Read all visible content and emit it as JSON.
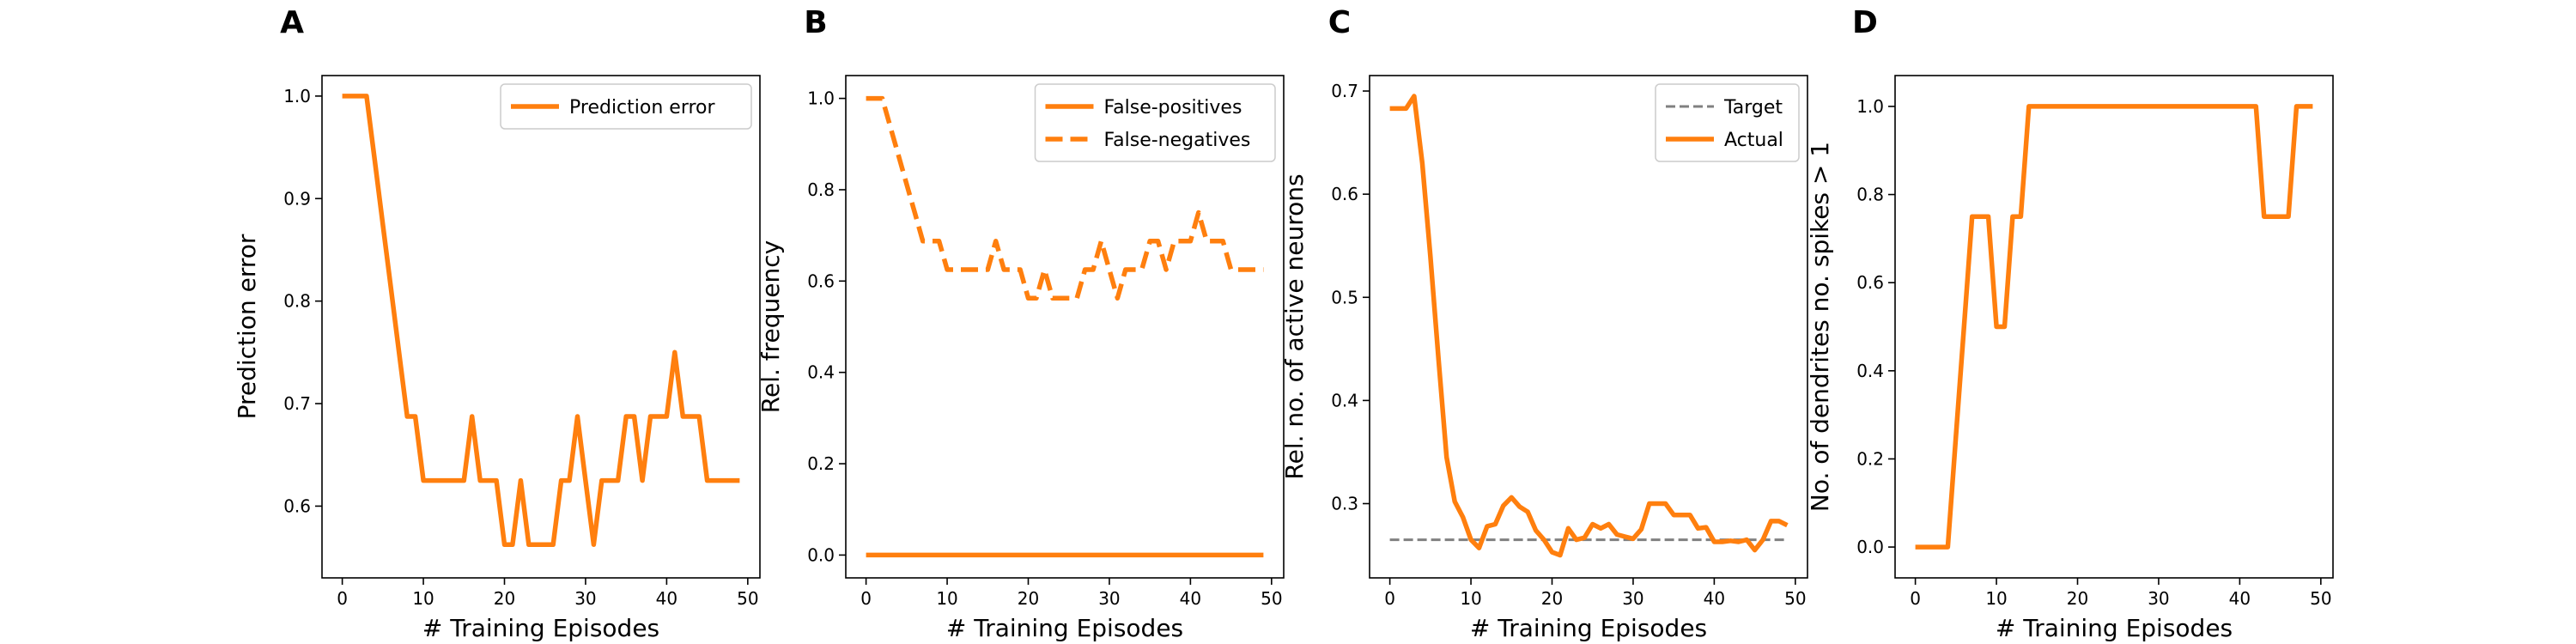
{
  "colors": {
    "series": "#ff7f0e",
    "target": "#808080",
    "axis": "#000000",
    "legend_border": "#cccccc"
  },
  "chart_data": [
    {
      "panel": "A",
      "type": "line",
      "xlabel": "# Training Episodes",
      "ylabel": "Prediction error",
      "xlim": [
        -2.5,
        51.5
      ],
      "ylim": [
        0.53,
        1.02
      ],
      "xticks": [
        0,
        10,
        20,
        30,
        40,
        50
      ],
      "yticks": [
        0.6,
        0.7,
        0.8,
        0.9,
        1.0
      ],
      "ytick_format": "1",
      "grid": false,
      "legend": "top-right",
      "x": [
        0,
        1,
        2,
        3,
        4,
        5,
        6,
        7,
        8,
        9,
        10,
        11,
        12,
        13,
        14,
        15,
        16,
        17,
        18,
        19,
        20,
        21,
        22,
        23,
        24,
        25,
        26,
        27,
        28,
        29,
        30,
        31,
        32,
        33,
        34,
        35,
        36,
        37,
        38,
        39,
        40,
        41,
        42,
        43,
        44,
        45,
        46,
        47,
        48,
        49
      ],
      "series": [
        {
          "name": "Prediction error",
          "style": "solid",
          "values": [
            1.0,
            1.0,
            1.0,
            1.0,
            0.9375,
            0.875,
            0.8125,
            0.75,
            0.6875,
            0.6875,
            0.625,
            0.625,
            0.625,
            0.625,
            0.625,
            0.625,
            0.6875,
            0.625,
            0.625,
            0.625,
            0.5625,
            0.5625,
            0.625,
            0.5625,
            0.5625,
            0.5625,
            0.5625,
            0.625,
            0.625,
            0.6875,
            0.625,
            0.5625,
            0.625,
            0.625,
            0.625,
            0.6875,
            0.6875,
            0.625,
            0.6875,
            0.6875,
            0.6875,
            0.75,
            0.6875,
            0.6875,
            0.6875,
            0.625,
            0.625,
            0.625,
            0.625,
            0.625
          ]
        }
      ]
    },
    {
      "panel": "B",
      "type": "line",
      "xlabel": "# Training Episodes",
      "ylabel": "Rel. frequency",
      "xlim": [
        -2.5,
        51.5
      ],
      "ylim": [
        -0.05,
        1.05
      ],
      "xticks": [
        0,
        10,
        20,
        30,
        40,
        50
      ],
      "yticks": [
        0.0,
        0.2,
        0.4,
        0.6,
        0.8,
        1.0
      ],
      "ytick_format": "1",
      "grid": false,
      "legend": "top-right",
      "x": [
        0,
        1,
        2,
        3,
        4,
        5,
        6,
        7,
        8,
        9,
        10,
        11,
        12,
        13,
        14,
        15,
        16,
        17,
        18,
        19,
        20,
        21,
        22,
        23,
        24,
        25,
        26,
        27,
        28,
        29,
        30,
        31,
        32,
        33,
        34,
        35,
        36,
        37,
        38,
        39,
        40,
        41,
        42,
        43,
        44,
        45,
        46,
        47,
        48,
        49
      ],
      "series": [
        {
          "name": "False-positives",
          "style": "solid",
          "values": [
            0,
            0,
            0,
            0,
            0,
            0,
            0,
            0,
            0,
            0,
            0,
            0,
            0,
            0,
            0,
            0,
            0,
            0,
            0,
            0,
            0,
            0,
            0,
            0,
            0,
            0,
            0,
            0,
            0,
            0,
            0,
            0,
            0,
            0,
            0,
            0,
            0,
            0,
            0,
            0,
            0,
            0,
            0,
            0,
            0,
            0,
            0,
            0,
            0,
            0
          ]
        },
        {
          "name": "False-negatives",
          "style": "dashed",
          "values": [
            1.0,
            1.0,
            1.0,
            0.9375,
            0.875,
            0.8125,
            0.75,
            0.6875,
            0.6875,
            0.6875,
            0.625,
            0.625,
            0.625,
            0.625,
            0.625,
            0.625,
            0.6875,
            0.625,
            0.625,
            0.625,
            0.5625,
            0.5625,
            0.625,
            0.5625,
            0.5625,
            0.5625,
            0.5625,
            0.625,
            0.625,
            0.6875,
            0.625,
            0.5625,
            0.625,
            0.625,
            0.625,
            0.6875,
            0.6875,
            0.625,
            0.6875,
            0.6875,
            0.6875,
            0.75,
            0.6875,
            0.6875,
            0.6875,
            0.625,
            0.625,
            0.625,
            0.625,
            0.625
          ]
        }
      ]
    },
    {
      "panel": "C",
      "type": "line",
      "xlabel": "# Training Episodes",
      "ylabel": "Rel. no. of active neurons",
      "xlim": [
        -2.5,
        51.5
      ],
      "ylim": [
        0.228,
        0.715
      ],
      "xticks": [
        0,
        10,
        20,
        30,
        40,
        50
      ],
      "yticks": [
        0.3,
        0.4,
        0.5,
        0.6,
        0.7
      ],
      "ytick_format": "1",
      "grid": false,
      "legend": "top-right",
      "x": [
        0,
        1,
        2,
        3,
        4,
        5,
        6,
        7,
        8,
        9,
        10,
        11,
        12,
        13,
        14,
        15,
        16,
        17,
        18,
        19,
        20,
        21,
        22,
        23,
        24,
        25,
        26,
        27,
        28,
        29,
        30,
        31,
        32,
        33,
        34,
        35,
        36,
        37,
        38,
        39,
        40,
        41,
        42,
        43,
        44,
        45,
        46,
        47,
        48,
        49
      ],
      "series": [
        {
          "name": "Target",
          "style": "dashed-thin",
          "values": [
            0.265,
            0.265,
            0.265,
            0.265,
            0.265,
            0.265,
            0.265,
            0.265,
            0.265,
            0.265,
            0.265,
            0.265,
            0.265,
            0.265,
            0.265,
            0.265,
            0.265,
            0.265,
            0.265,
            0.265,
            0.265,
            0.265,
            0.265,
            0.265,
            0.265,
            0.265,
            0.265,
            0.265,
            0.265,
            0.265,
            0.265,
            0.265,
            0.265,
            0.265,
            0.265,
            0.265,
            0.265,
            0.265,
            0.265,
            0.265,
            0.265,
            0.265,
            0.265,
            0.265,
            0.265,
            0.265,
            0.265,
            0.265,
            0.265,
            0.265
          ]
        },
        {
          "name": "Actual",
          "style": "solid",
          "values": [
            0.683,
            0.683,
            0.683,
            0.695,
            0.63,
            0.54,
            0.44,
            0.345,
            0.302,
            0.287,
            0.265,
            0.257,
            0.278,
            0.28,
            0.298,
            0.306,
            0.297,
            0.292,
            0.274,
            0.265,
            0.253,
            0.25,
            0.276,
            0.265,
            0.267,
            0.28,
            0.276,
            0.28,
            0.27,
            0.268,
            0.266,
            0.275,
            0.3,
            0.3,
            0.3,
            0.289,
            0.289,
            0.289,
            0.276,
            0.277,
            0.263,
            0.263,
            0.264,
            0.263,
            0.265,
            0.255,
            0.265,
            0.283,
            0.283,
            0.279
          ]
        }
      ]
    },
    {
      "panel": "D",
      "type": "line",
      "xlabel": "# Training Episodes",
      "ylabel": "No. of dendrites no. spikes > 1",
      "xlim": [
        -2.5,
        51.5
      ],
      "ylim": [
        -0.07,
        1.07
      ],
      "xticks": [
        0,
        10,
        20,
        30,
        40,
        50
      ],
      "yticks": [
        0.0,
        0.2,
        0.4,
        0.6,
        0.8,
        1.0
      ],
      "ytick_format": "1",
      "grid": false,
      "legend": "none",
      "x": [
        0,
        1,
        2,
        3,
        4,
        5,
        6,
        7,
        8,
        9,
        10,
        11,
        12,
        13,
        14,
        15,
        16,
        17,
        18,
        19,
        20,
        21,
        22,
        23,
        24,
        25,
        26,
        27,
        28,
        29,
        30,
        31,
        32,
        33,
        34,
        35,
        36,
        37,
        38,
        39,
        40,
        41,
        42,
        43,
        44,
        45,
        46,
        47,
        48,
        49
      ],
      "series": [
        {
          "name": "",
          "style": "solid",
          "values": [
            0,
            0,
            0,
            0,
            0,
            0.25,
            0.5,
            0.75,
            0.75,
            0.75,
            0.5,
            0.5,
            0.75,
            0.75,
            1,
            1,
            1,
            1,
            1,
            1,
            1,
            1,
            1,
            1,
            1,
            1,
            1,
            1,
            1,
            1,
            1,
            1,
            1,
            1,
            1,
            1,
            1,
            1,
            1,
            1,
            1,
            1,
            1,
            0.75,
            0.75,
            0.75,
            0.75,
            1,
            1,
            1
          ]
        }
      ]
    }
  ]
}
